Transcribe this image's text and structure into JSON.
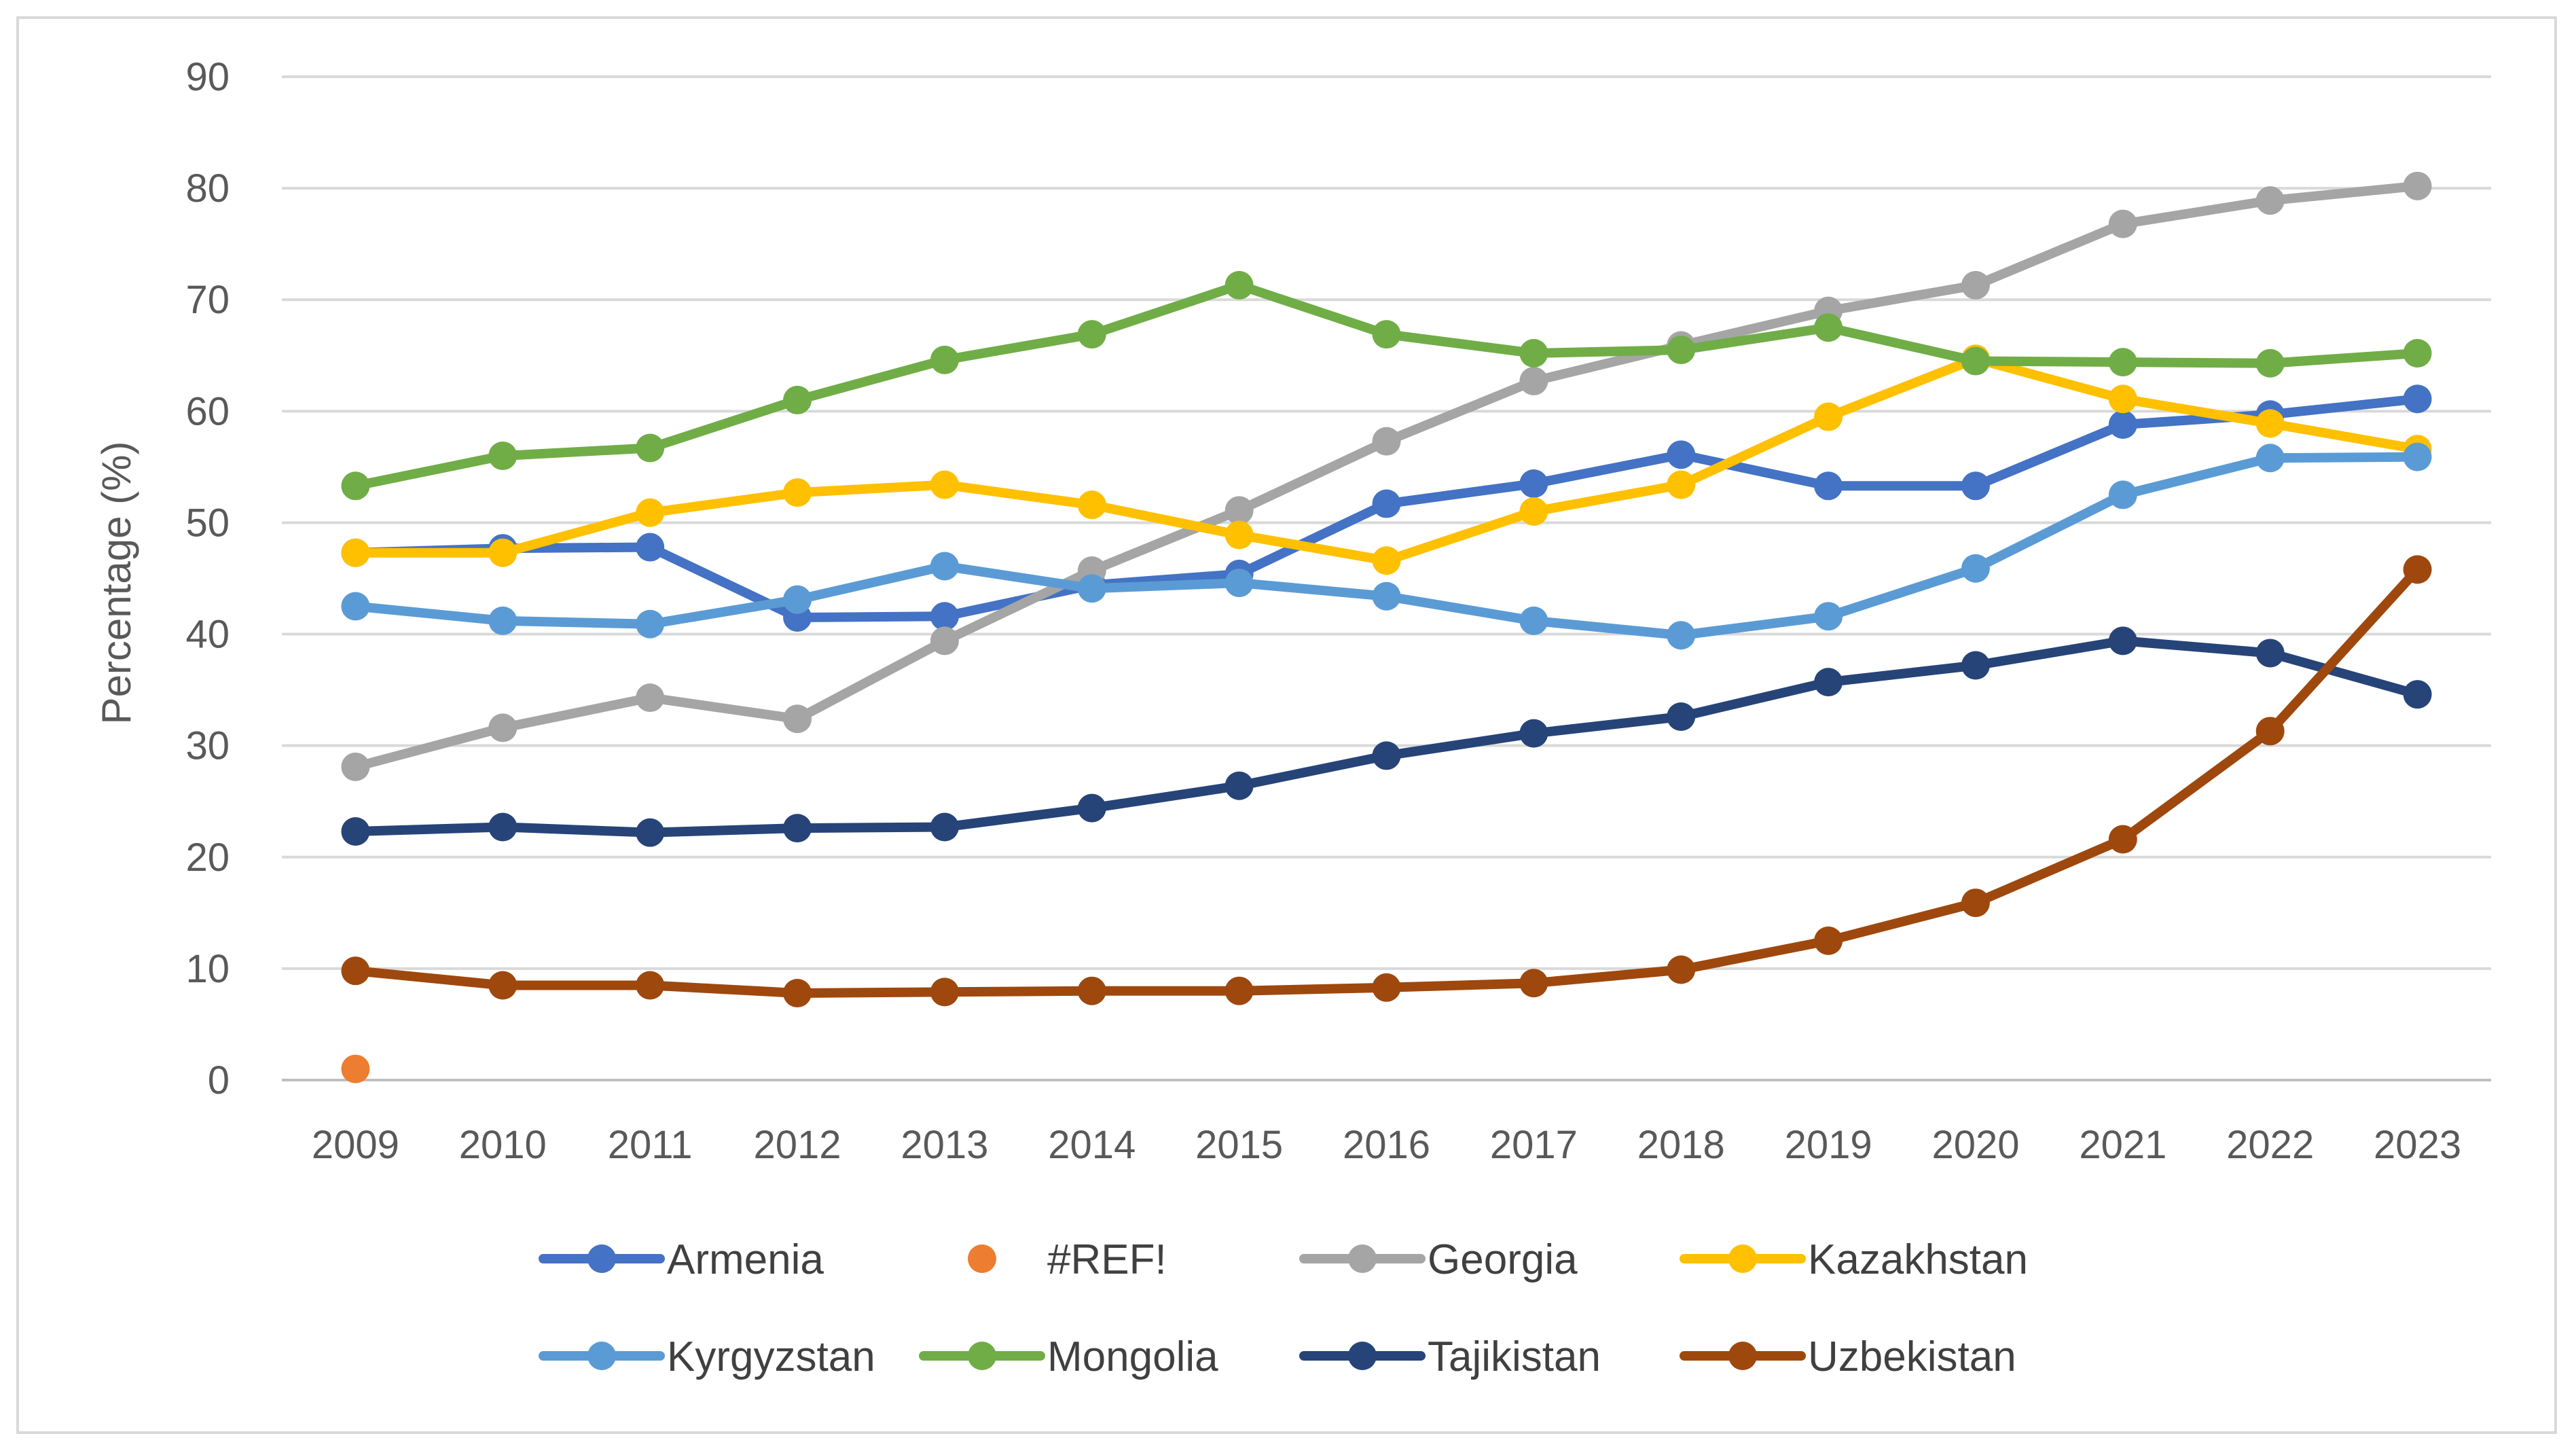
{
  "chart_data": {
    "type": "line",
    "title": "",
    "xlabel": "",
    "ylabel": "Percentage (%)",
    "ylim": [
      0,
      90
    ],
    "yticks": [
      "0",
      "10",
      "20",
      "30",
      "40",
      "50",
      "60",
      "70",
      "80",
      "90"
    ],
    "grid": true,
    "legend_position": "bottom",
    "categories": [
      "2009",
      "2010",
      "2011",
      "2012",
      "2013",
      "2014",
      "2015",
      "2016",
      "2017",
      "2018",
      "2019",
      "2020",
      "2021",
      "2022",
      "2023"
    ],
    "series": [
      {
        "name": "Armenia",
        "color": "#4472c4",
        "values": [
          47.3,
          47.7,
          47.8,
          41.5,
          41.6,
          44.4,
          45.4,
          51.7,
          53.5,
          56.1,
          53.3,
          53.3,
          58.8,
          59.7,
          61.1
        ]
      },
      {
        "name": "#REF!",
        "color": "#ed7d31",
        "values": [
          1.0,
          null,
          null,
          null,
          null,
          null,
          null,
          null,
          null,
          null,
          null,
          null,
          null,
          null,
          null
        ]
      },
      {
        "name": "Georgia",
        "color": "#a5a5a5",
        "values": [
          28.1,
          31.6,
          34.3,
          32.4,
          39.4,
          45.7,
          51.1,
          57.3,
          62.7,
          65.9,
          69.0,
          71.3,
          76.8,
          78.9,
          80.2
        ]
      },
      {
        "name": "Kazakhstan",
        "color": "#ffc000",
        "values": [
          47.3,
          47.3,
          50.9,
          52.7,
          53.4,
          51.6,
          48.9,
          46.6,
          51.0,
          53.4,
          59.5,
          64.7,
          61.1,
          58.9,
          56.6
        ]
      },
      {
        "name": "Kyrgyzstan",
        "color": "#5b9bd5",
        "values": [
          42.5,
          41.2,
          40.9,
          43.1,
          46.1,
          44.1,
          44.6,
          43.4,
          41.2,
          39.9,
          41.6,
          45.9,
          52.5,
          55.8,
          55.9
        ]
      },
      {
        "name": "Mongolia",
        "color": "#70ad47",
        "values": [
          53.3,
          56.0,
          56.7,
          61.0,
          64.6,
          66.9,
          71.3,
          66.9,
          65.2,
          65.5,
          67.5,
          64.5,
          64.4,
          64.3,
          65.2
        ]
      },
      {
        "name": "Tajikistan",
        "color": "#264478",
        "values": [
          22.3,
          22.7,
          22.2,
          22.6,
          22.7,
          24.4,
          26.4,
          29.1,
          31.1,
          32.6,
          35.7,
          37.2,
          39.4,
          38.3,
          34.6
        ]
      },
      {
        "name": "Uzbekistan",
        "color": "#9e480e",
        "values": [
          9.8,
          8.5,
          8.5,
          7.8,
          7.9,
          8.0,
          8.0,
          8.3,
          8.7,
          9.9,
          12.5,
          15.9,
          21.6,
          31.3,
          45.8
        ]
      }
    ]
  }
}
